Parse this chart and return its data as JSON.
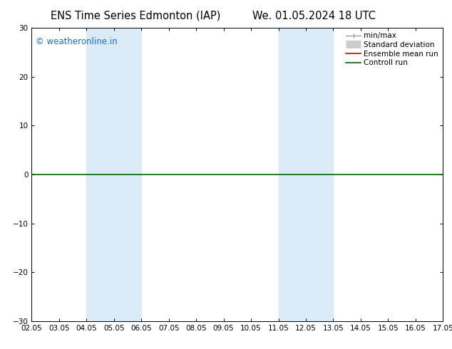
{
  "title_left": "ENS Time Series Edmonton (IAP)",
  "title_right": "We. 01.05.2024 18 UTC",
  "ylim": [
    -30,
    30
  ],
  "yticks": [
    -30,
    -20,
    -10,
    0,
    10,
    20,
    30
  ],
  "x_labels": [
    "02.05",
    "03.05",
    "04.05",
    "05.05",
    "06.05",
    "07.05",
    "08.05",
    "09.05",
    "10.05",
    "11.05",
    "12.05",
    "13.05",
    "14.05",
    "15.05",
    "16.05",
    "17.05"
  ],
  "shaded_regions": [
    {
      "xstart": "04.05",
      "xend": "06.05"
    },
    {
      "xstart": "11.05",
      "xend": "13.05"
    }
  ],
  "shade_color": "#daeaf7",
  "zero_line_color": "#006600",
  "background_color": "#ffffff",
  "watermark": "© weatheronline.in",
  "watermark_color": "#1a6dcc",
  "legend_items": [
    {
      "label": "min/max",
      "color": "#999999",
      "lw": 1.0
    },
    {
      "label": "Standard deviation",
      "color": "#cccccc",
      "lw": 8
    },
    {
      "label": "Ensemble mean run",
      "color": "#cc0000",
      "lw": 1.2
    },
    {
      "label": "Controll run",
      "color": "#006600",
      "lw": 1.2
    }
  ],
  "title_fontsize": 10.5,
  "tick_fontsize": 7.5,
  "legend_fontsize": 7.5,
  "watermark_fontsize": 8.5,
  "figsize": [
    6.34,
    4.9
  ],
  "dpi": 100
}
